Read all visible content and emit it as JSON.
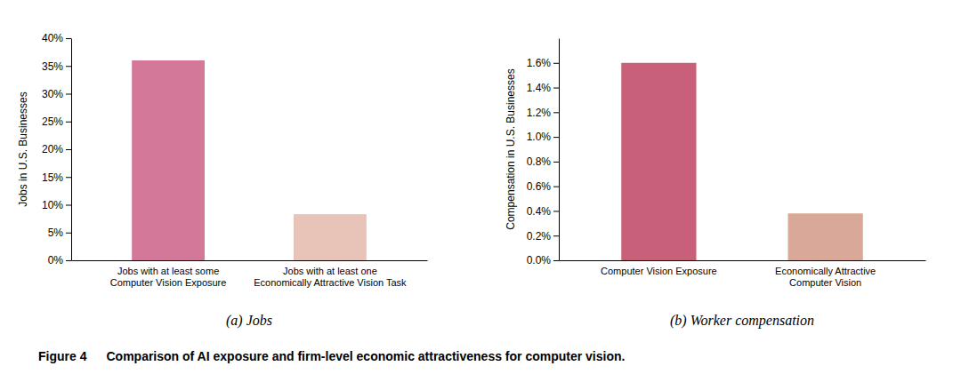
{
  "chart_data": [
    {
      "type": "bar",
      "categories": [
        "Jobs with at least some\nComputer Vision Exposure",
        "Jobs with at least one\nEconomically Attractive Vision Task"
      ],
      "values": [
        0.36,
        0.083
      ],
      "colors": [
        "#d4789a",
        "#e8c4b8"
      ],
      "ylabel": "Jobs in U.S. Businesses",
      "ylim": [
        0,
        0.4
      ],
      "yticks": [
        {
          "value": 0.0,
          "label": "0%"
        },
        {
          "value": 0.05,
          "label": "5%"
        },
        {
          "value": 0.1,
          "label": "10%"
        },
        {
          "value": 0.15,
          "label": "15%"
        },
        {
          "value": 0.2,
          "label": "20%"
        },
        {
          "value": 0.25,
          "label": "25%"
        },
        {
          "value": 0.3,
          "label": "30%"
        },
        {
          "value": 0.35,
          "label": "35%"
        },
        {
          "value": 0.4,
          "label": "40%"
        }
      ],
      "subtitle": "(a) Jobs"
    },
    {
      "type": "bar",
      "categories": [
        "Computer Vision Exposure",
        "Economically Attractive\nComputer Vision"
      ],
      "values": [
        0.016,
        0.0038
      ],
      "colors": [
        "#c8607a",
        "#d9a898"
      ],
      "ylabel": "Compensation in U.S. Businesses",
      "ylim": [
        0,
        0.018
      ],
      "yticks": [
        {
          "value": 0.0,
          "label": "0.0%"
        },
        {
          "value": 0.002,
          "label": "0.2%"
        },
        {
          "value": 0.004,
          "label": "0.4%"
        },
        {
          "value": 0.006,
          "label": "0.6%"
        },
        {
          "value": 0.008,
          "label": "0.8%"
        },
        {
          "value": 0.01,
          "label": "1.0%"
        },
        {
          "value": 0.012,
          "label": "1.2%"
        },
        {
          "value": 0.014,
          "label": "1.4%"
        },
        {
          "value": 0.016,
          "label": "1.6%"
        }
      ],
      "subtitle": "(b) Worker compensation"
    }
  ],
  "annotations": [
    "Figure 4",
    "Comparison of AI exposure and firm-level economic attractiveness for computer vision."
  ]
}
